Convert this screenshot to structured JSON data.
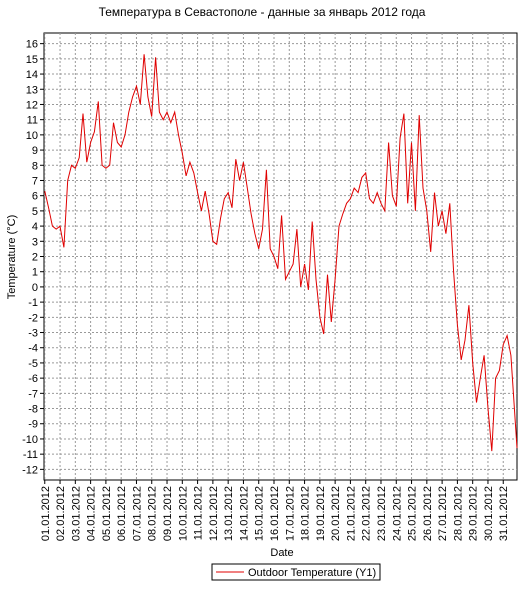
{
  "chart_data": {
    "type": "line",
    "title": "Температура в Севастополе - данные за январь 2012 года",
    "y_label": "Temperature (°C)",
    "x_label": "Date",
    "x": [
      1,
      1.25,
      1.5,
      1.75,
      2,
      2.25,
      2.5,
      2.75,
      3,
      3.25,
      3.5,
      3.75,
      4,
      4.25,
      4.5,
      4.75,
      5,
      5.25,
      5.5,
      5.75,
      6,
      6.25,
      6.5,
      6.75,
      7,
      7.25,
      7.5,
      7.75,
      8,
      8.25,
      8.5,
      8.75,
      9,
      9.25,
      9.5,
      9.75,
      10,
      10.25,
      10.5,
      10.75,
      11,
      11.25,
      11.5,
      11.75,
      12,
      12.25,
      12.5,
      12.75,
      13,
      13.25,
      13.5,
      13.75,
      14,
      14.25,
      14.5,
      14.75,
      15,
      15.25,
      15.5,
      15.75,
      16,
      16.25,
      16.5,
      16.75,
      17,
      17.25,
      17.5,
      17.75,
      18,
      18.25,
      18.5,
      18.75,
      19,
      19.25,
      19.5,
      19.75,
      20,
      20.25,
      20.5,
      20.75,
      21,
      21.25,
      21.5,
      21.75,
      22,
      22.25,
      22.5,
      22.75,
      23,
      23.25,
      23.5,
      23.75,
      24,
      24.25,
      24.5,
      24.75,
      25,
      25.25,
      25.5,
      25.75,
      26,
      26.25,
      26.5,
      26.75,
      27,
      27.25,
      27.5,
      27.75,
      28,
      28.25,
      28.5,
      28.75,
      29,
      29.25,
      29.5,
      29.75,
      30,
      30.25,
      30.5,
      30.75,
      31,
      31.25,
      31.5,
      31.75,
      31.9
    ],
    "series": [
      {
        "name": "Outdoor Temperature (Y1)",
        "color": "#e00000",
        "values": [
          6.3,
          5.2,
          4.0,
          3.8,
          4.0,
          2.6,
          7.0,
          8.0,
          7.8,
          8.5,
          11.4,
          8.2,
          9.5,
          10.2,
          12.2,
          8.0,
          7.8,
          8.0,
          10.8,
          9.5,
          9.2,
          10.0,
          11.5,
          12.5,
          13.2,
          12.0,
          15.3,
          12.5,
          11.2,
          15.1,
          11.5,
          11.0,
          11.5,
          10.8,
          11.5,
          10.0,
          8.8,
          7.3,
          8.2,
          7.5,
          6.2,
          5.0,
          6.3,
          4.8,
          3.0,
          2.8,
          4.5,
          5.8,
          6.2,
          5.2,
          8.4,
          7.0,
          8.2,
          6.5,
          4.8,
          3.5,
          2.5,
          3.8,
          7.7,
          2.5,
          2.0,
          1.2,
          4.7,
          0.5,
          1.0,
          1.5,
          3.8,
          0.0,
          1.5,
          -0.2,
          4.3,
          0.5,
          -2.0,
          -3.1,
          0.8,
          -2.3,
          0.5,
          4.0,
          4.8,
          5.5,
          5.8,
          6.5,
          6.2,
          7.2,
          7.5,
          5.8,
          5.5,
          6.2,
          5.5,
          5.0,
          9.5,
          6.0,
          5.3,
          9.8,
          11.4,
          5.5,
          9.5,
          5.0,
          11.3,
          6.5,
          5.0,
          2.3,
          6.2,
          4.0,
          5.0,
          3.5,
          5.5,
          1.0,
          -2.5,
          -4.8,
          -3.5,
          -1.2,
          -5.0,
          -7.6,
          -6.0,
          -4.5,
          -8.0,
          -10.8,
          -6.0,
          -5.5,
          -3.8,
          -3.2,
          -4.5,
          -8.3,
          -10.6
        ]
      }
    ],
    "xlim": [
      0.95,
      31.9
    ],
    "ylim": [
      -12.7,
      16.7
    ],
    "yticks": [
      -12,
      -11,
      -10,
      -9,
      -8,
      -7,
      -6,
      -5,
      -4,
      -3,
      -2,
      -1,
      0,
      1,
      2,
      3,
      4,
      5,
      6,
      7,
      8,
      9,
      10,
      11,
      12,
      13,
      14,
      15,
      16
    ],
    "xticks": [
      {
        "value": 1,
        "label": "01.01.2012"
      },
      {
        "value": 2,
        "label": "02.01.2012"
      },
      {
        "value": 3,
        "label": "03.01.2012"
      },
      {
        "value": 4,
        "label": "04.01.2012"
      },
      {
        "value": 5,
        "label": "05.01.2012"
      },
      {
        "value": 6,
        "label": "06.01.2012"
      },
      {
        "value": 7,
        "label": "07.01.2012"
      },
      {
        "value": 8,
        "label": "08.01.2012"
      },
      {
        "value": 9,
        "label": "09.01.2012"
      },
      {
        "value": 10,
        "label": "10.01.2012"
      },
      {
        "value": 11,
        "label": "11.01.2012"
      },
      {
        "value": 12,
        "label": "12.01.2012"
      },
      {
        "value": 13,
        "label": "13.01.2012"
      },
      {
        "value": 14,
        "label": "14.01.2012"
      },
      {
        "value": 15,
        "label": "15.01.2012"
      },
      {
        "value": 16,
        "label": "16.01.2012"
      },
      {
        "value": 17,
        "label": "17.01.2012"
      },
      {
        "value": 18,
        "label": "18.01.2012"
      },
      {
        "value": 19,
        "label": "19.01.2012"
      },
      {
        "value": 20,
        "label": "20.01.2012"
      },
      {
        "value": 21,
        "label": "21.01.2012"
      },
      {
        "value": 22,
        "label": "22.01.2012"
      },
      {
        "value": 23,
        "label": "23.01.2012"
      },
      {
        "value": 24,
        "label": "24.01.2012"
      },
      {
        "value": 25,
        "label": "25.01.2012"
      },
      {
        "value": 26,
        "label": "26.01.2012"
      },
      {
        "value": 27,
        "label": "27.01.2012"
      },
      {
        "value": 28,
        "label": "28.01.2012"
      },
      {
        "value": 29,
        "label": "29.01.2012"
      },
      {
        "value": 30,
        "label": "30.01.2012"
      },
      {
        "value": 31,
        "label": "31.01.2012"
      }
    ],
    "grid": true
  }
}
